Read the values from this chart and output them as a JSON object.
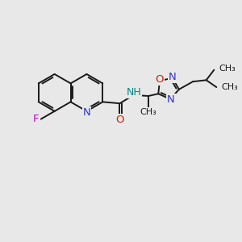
{
  "bg_color": "#e8e8e8",
  "bond_color": "#1a1a1a",
  "bond_width": 1.4,
  "N_color": "#3333cc",
  "O_color": "#cc2200",
  "F_color": "#cc00cc",
  "H_color": "#008888",
  "font_size": 8.5,
  "figsize": [
    3.0,
    3.0
  ],
  "dpi": 100,
  "xlim": [
    -1.0,
    9.5
  ],
  "ylim": [
    -1.5,
    4.5
  ]
}
